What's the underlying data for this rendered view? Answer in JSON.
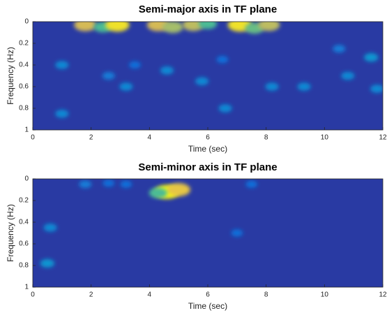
{
  "chart_data": [
    {
      "type": "heatmap",
      "title": "Semi-major axis in TF plane",
      "x_label": "Time (sec)",
      "y_label": "Frequency (Hz)",
      "xlim": [
        0,
        12
      ],
      "xticks": [
        0,
        2,
        4,
        6,
        8,
        10,
        12
      ],
      "ylim": [
        0,
        1
      ],
      "yticks": [
        0,
        0.2,
        0.4,
        0.6,
        0.8,
        1
      ],
      "y_reversed": true,
      "colormap": "parula",
      "x": [
        1.8,
        2.4,
        2.9,
        4.3,
        4.8,
        5.5,
        6.0,
        7.1,
        7.6,
        8.1,
        1.0,
        2.6,
        3.2,
        1.0,
        4.6,
        5.8,
        6.6,
        8.2,
        9.3,
        10.8,
        11.6,
        11.8,
        10.5,
        3.5,
        6.5
      ],
      "y": [
        0.03,
        0.05,
        0.03,
        0.03,
        0.05,
        0.03,
        0.02,
        0.03,
        0.06,
        0.03,
        0.4,
        0.5,
        0.6,
        0.85,
        0.45,
        0.55,
        0.8,
        0.6,
        0.6,
        0.5,
        0.33,
        0.62,
        0.25,
        0.4,
        0.35
      ],
      "values": [
        0.85,
        0.6,
        0.95,
        0.85,
        0.75,
        0.8,
        0.6,
        0.95,
        0.65,
        0.8,
        0.3,
        0.25,
        0.3,
        0.3,
        0.3,
        0.3,
        0.3,
        0.3,
        0.3,
        0.3,
        0.35,
        0.3,
        0.25,
        0.2,
        0.2
      ]
    },
    {
      "type": "heatmap",
      "title": "Semi-minor axis in TF plane",
      "x_label": "Time (sec)",
      "y_label": "Frequency (Hz)",
      "xlim": [
        0,
        12
      ],
      "xticks": [
        0,
        2,
        4,
        6,
        8,
        10,
        12
      ],
      "ylim": [
        0,
        1
      ],
      "yticks": [
        0,
        0.2,
        0.4,
        0.6,
        0.8,
        1
      ],
      "y_reversed": true,
      "colormap": "parula",
      "x": [
        4.6,
        5.0,
        4.3,
        0.6,
        0.5,
        7.0,
        1.8,
        3.2,
        7.5,
        2.6
      ],
      "y": [
        0.12,
        0.1,
        0.13,
        0.45,
        0.78,
        0.5,
        0.05,
        0.05,
        0.05,
        0.04
      ],
      "values": [
        1.0,
        0.9,
        0.6,
        0.3,
        0.35,
        0.2,
        0.25,
        0.2,
        0.2,
        0.2
      ]
    }
  ]
}
